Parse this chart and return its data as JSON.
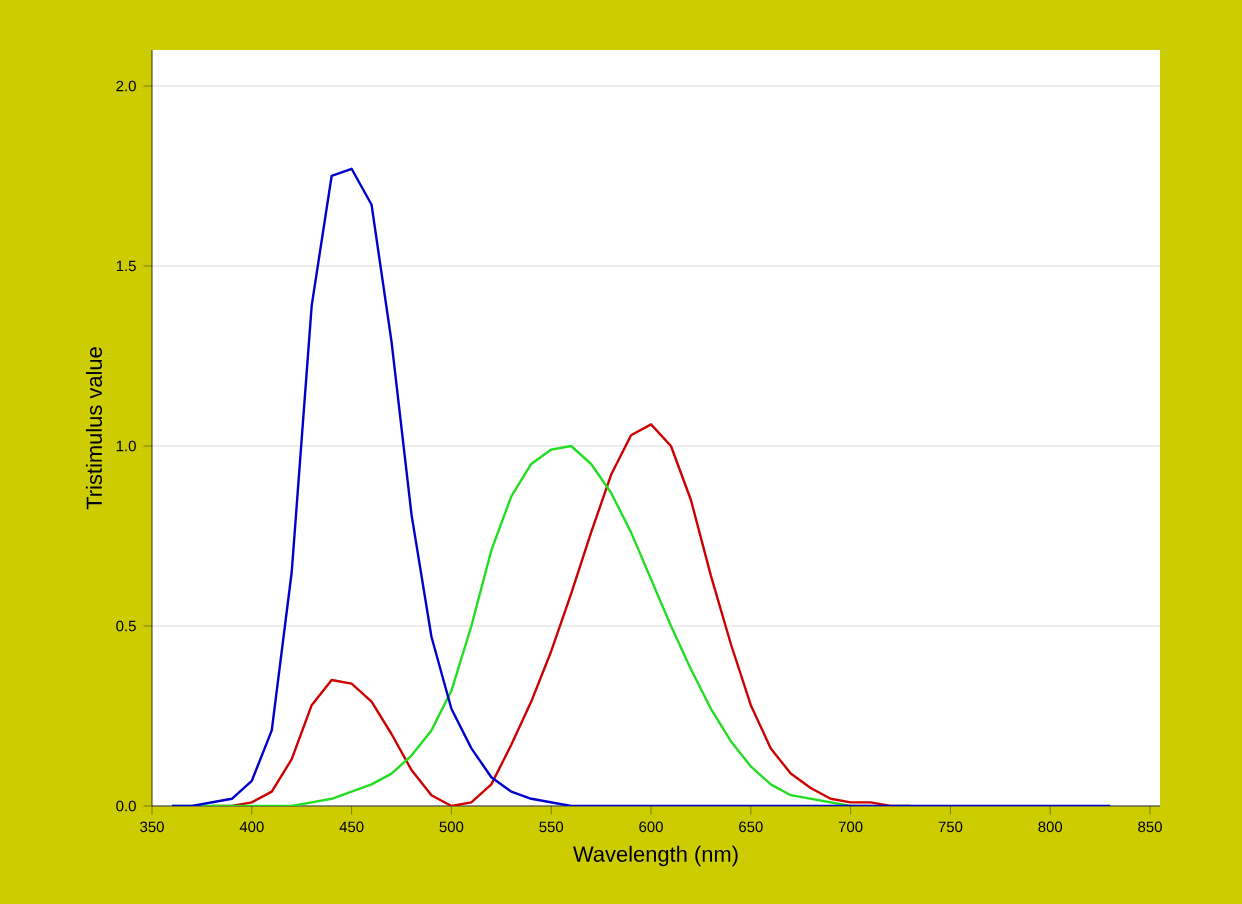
{
  "chart_data": {
    "type": "line",
    "xlabel": "Wavelength (nm)",
    "ylabel": "Tristimulus value",
    "x": [
      360,
      370,
      380,
      390,
      400,
      410,
      420,
      430,
      440,
      450,
      460,
      470,
      480,
      490,
      500,
      510,
      520,
      530,
      540,
      550,
      560,
      570,
      580,
      590,
      600,
      610,
      620,
      630,
      640,
      650,
      660,
      670,
      680,
      690,
      700,
      710,
      720,
      730,
      740,
      750,
      760,
      770,
      780,
      790,
      800,
      810,
      820,
      830
    ],
    "series": [
      {
        "color": "#cc0000",
        "values": [
          null,
          null,
          0,
          0,
          0.01,
          0.04,
          0.13,
          0.28,
          0.35,
          0.34,
          0.29,
          0.2,
          0.1,
          0.03,
          0,
          0.01,
          0.06,
          0.17,
          0.29,
          0.43,
          0.59,
          0.76,
          0.92,
          1.03,
          1.06,
          1.0,
          0.85,
          0.64,
          0.45,
          0.28,
          0.16,
          0.09,
          0.05,
          0.02,
          0.01,
          0.01,
          0,
          0,
          null,
          null,
          null,
          null,
          null,
          null,
          null,
          null,
          null,
          null
        ]
      },
      {
        "color": "#22dd22",
        "values": [
          0,
          0,
          0,
          0,
          0,
          0,
          0,
          0.01,
          0.02,
          0.04,
          0.06,
          0.09,
          0.14,
          0.21,
          0.32,
          0.5,
          0.71,
          0.86,
          0.95,
          0.99,
          1.0,
          0.95,
          0.87,
          0.76,
          0.63,
          0.5,
          0.38,
          0.27,
          0.18,
          0.11,
          0.06,
          0.03,
          0.02,
          0.01,
          0,
          0,
          null,
          null,
          null,
          null,
          null,
          null,
          null,
          null,
          null,
          null,
          null,
          null
        ]
      },
      {
        "color": "#0000cc",
        "values": [
          0,
          0,
          0.01,
          0.02,
          0.07,
          0.21,
          0.65,
          1.39,
          1.75,
          1.77,
          1.67,
          1.29,
          0.81,
          0.47,
          0.27,
          0.16,
          0.08,
          0.04,
          0.02,
          0.01,
          0,
          0,
          0,
          0,
          0,
          0,
          0,
          0,
          0,
          0,
          0,
          0,
          0,
          0,
          0,
          0,
          0,
          0,
          0,
          0,
          0,
          0,
          0,
          0,
          0,
          0,
          0,
          0
        ]
      }
    ],
    "xlim": [
      350,
      855
    ],
    "ylim": [
      0,
      2.1
    ],
    "xticks": [
      350,
      400,
      450,
      500,
      550,
      600,
      650,
      700,
      750,
      800,
      850
    ],
    "yticks": [
      {
        "value": 0,
        "label": "0.0"
      },
      {
        "value": 0.5,
        "label": "0.5"
      },
      {
        "value": 1,
        "label": "1.0"
      },
      {
        "value": 1.5,
        "label": "1.5"
      },
      {
        "value": 2,
        "label": "2.0"
      }
    ],
    "grid": "y",
    "marker": "none",
    "line_style": "solid"
  }
}
